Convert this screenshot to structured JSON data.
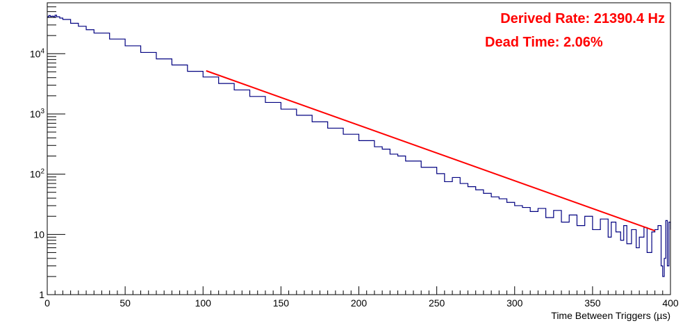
{
  "chart_data": {
    "type": "line",
    "title": "",
    "xlabel": "Time Between Triggers (µs)",
    "ylabel": "",
    "xlim": [
      0,
      400
    ],
    "ylim": [
      1,
      70000
    ],
    "yscale": "log",
    "grid": false,
    "x_ticks": [
      {
        "value": 0,
        "label": "0"
      },
      {
        "value": 50,
        "label": "50"
      },
      {
        "value": 100,
        "label": "100"
      },
      {
        "value": 150,
        "label": "150"
      },
      {
        "value": 200,
        "label": "200"
      },
      {
        "value": 250,
        "label": "250"
      },
      {
        "value": 300,
        "label": "300"
      },
      {
        "value": 350,
        "label": "350"
      },
      {
        "value": 400,
        "label": "400"
      }
    ],
    "y_ticks": [
      {
        "value": 1,
        "base": "1",
        "exp": ""
      },
      {
        "value": 10,
        "base": "10",
        "exp": ""
      },
      {
        "value": 100,
        "base": "10",
        "exp": "2"
      },
      {
        "value": 1000,
        "base": "10",
        "exp": "3"
      },
      {
        "value": 10000,
        "base": "10",
        "exp": "4"
      }
    ],
    "series": [
      {
        "style": "step",
        "color": "#000080",
        "x": [
          0,
          1,
          2,
          3,
          4,
          5,
          6,
          8,
          10,
          15,
          20,
          25,
          30,
          40,
          50,
          60,
          70,
          80,
          90,
          100,
          110,
          120,
          130,
          140,
          150,
          160,
          170,
          180,
          190,
          200,
          210,
          215,
          220,
          225,
          230,
          240,
          250,
          255,
          260,
          265,
          270,
          275,
          280,
          285,
          290,
          295,
          300,
          305,
          310,
          315,
          320,
          325,
          330,
          335,
          340,
          345,
          350,
          355,
          360,
          362,
          365,
          368,
          370,
          372,
          375,
          378,
          380,
          383,
          385,
          388,
          390,
          392,
          394,
          395,
          396,
          397,
          398,
          399,
          400
        ],
        "values": [
          41000,
          43000,
          41500,
          42000,
          41000,
          43500,
          41000,
          39000,
          37000,
          32000,
          28500,
          25000,
          22000,
          17500,
          13500,
          10500,
          8200,
          6500,
          5100,
          4100,
          3200,
          2500,
          1950,
          1550,
          1200,
          950,
          740,
          580,
          460,
          360,
          285,
          260,
          215,
          200,
          165,
          130,
          102,
          75,
          88,
          70,
          62,
          55,
          48,
          42,
          39,
          34,
          30,
          28,
          24,
          27,
          19,
          25,
          16,
          21,
          14,
          20,
          12,
          18,
          9,
          16,
          11,
          8,
          14,
          7,
          12,
          6,
          9,
          13,
          5,
          11,
          12,
          14,
          3,
          2,
          4,
          17,
          3,
          16,
          12
        ]
      },
      {
        "style": "line",
        "color": "#ff0000",
        "x": [
          102,
          390
        ],
        "values": [
          5200,
          11.5
        ]
      }
    ]
  },
  "annotations": {
    "rate": "Derived Rate: 21390.4 Hz",
    "dead_time": "Dead Time: 2.06%"
  },
  "colors": {
    "histogram": "#000080",
    "fit": "#ff0000",
    "annotation": "#ff0000"
  }
}
